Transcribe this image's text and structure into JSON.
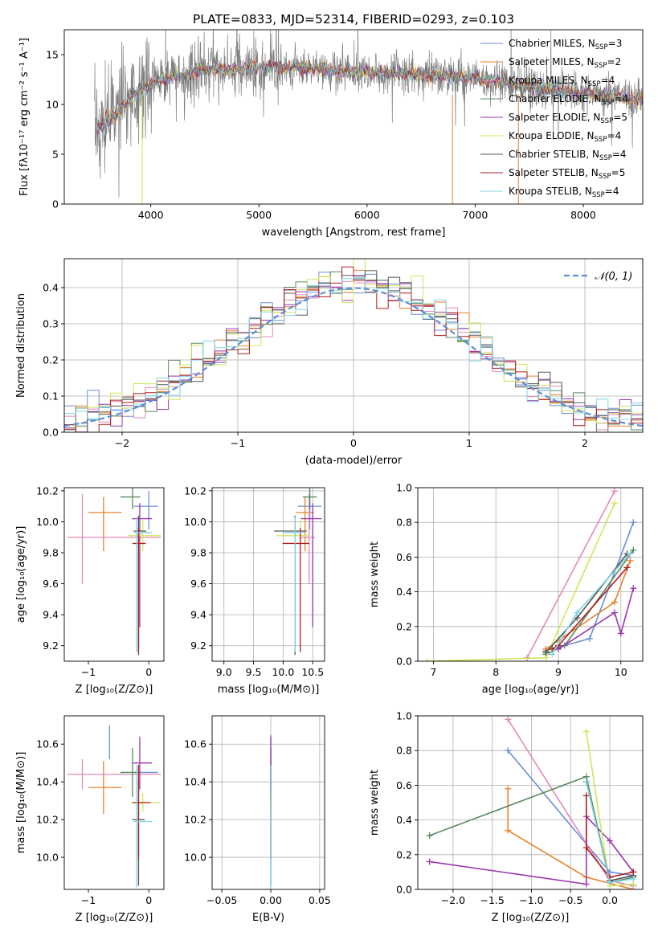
{
  "figure": {
    "title": "PLATE=0833, MJD=52314, FIBERID=0293, z=0.103"
  },
  "series_styles": [
    {
      "name": "Chabrier MILES",
      "nssp": "3",
      "color": "#6a8fd8"
    },
    {
      "name": "Salpeter MILES",
      "nssp": "2",
      "color": "#e8822a"
    },
    {
      "name": "Kroupa MILES",
      "nssp": "4",
      "color": "#e28ab8"
    },
    {
      "name": "Chabrier ELODIE",
      "nssp": "4",
      "color": "#5a8a60"
    },
    {
      "name": "Salpeter ELODIE",
      "nssp": "5",
      "color": "#9a35b0"
    },
    {
      "name": "Kroupa ELODIE",
      "nssp": "4",
      "color": "#cce85a"
    },
    {
      "name": "Chabrier STELIB",
      "nssp": "4",
      "color": "#555555"
    },
    {
      "name": "Salpeter STELIB",
      "nssp": "5",
      "color": "#b01d1d"
    },
    {
      "name": "Kroupa STELIB",
      "nssp": "4",
      "color": "#7fd6e4"
    }
  ],
  "chart_data": [
    {
      "id": "spectrum",
      "type": "line",
      "title": "PLATE=0833, MJD=52314, FIBERID=0293, z=0.103",
      "xlabel": "wavelength [Angstrom, rest frame]",
      "ylabel": "Flux [fλ10⁻¹⁷ erg cm⁻² s⁻¹ A⁻¹]",
      "xlim": [
        3200,
        8550
      ],
      "ylim": [
        0,
        17.5
      ],
      "xticks": [
        4000,
        5000,
        6000,
        7000,
        8000
      ],
      "yticks": [
        0,
        5,
        10,
        15
      ],
      "grid": false,
      "legend": "top-right",
      "data_color": "#7f7f7f",
      "continuum": {
        "x": [
          3480,
          3550,
          3650,
          3750,
          3850,
          3950,
          4050,
          4150,
          4300,
          4500,
          4700,
          4900,
          5100,
          5300,
          5500,
          5700,
          5900,
          6100,
          6300,
          6500,
          6700,
          6900,
          7100,
          7300,
          7500,
          7700,
          7900,
          8100,
          8300,
          8550
        ],
        "y": [
          7.5,
          7.8,
          8.8,
          10.0,
          11.0,
          11.8,
          12.3,
          12.6,
          13.0,
          13.4,
          13.5,
          13.6,
          13.8,
          13.7,
          13.6,
          13.4,
          13.3,
          13.3,
          13.1,
          13.0,
          12.9,
          12.8,
          12.5,
          12.2,
          11.8,
          11.5,
          11.2,
          11.1,
          10.8,
          10.5
        ]
      }
    },
    {
      "id": "residuals",
      "type": "histogram",
      "xlabel": "(data-model)/error",
      "ylabel": "Normed distribution",
      "xlim": [
        -2.5,
        2.5
      ],
      "ylim": [
        0,
        0.48
      ],
      "xticks": [
        -2,
        -1,
        0,
        1,
        2
      ],
      "yticks": [
        0.0,
        0.1,
        0.2,
        0.3,
        0.4
      ],
      "grid": true,
      "legend": "top-right",
      "reference_curve": {
        "label": "𝒩(0, 1)",
        "mean": 0,
        "sigma": 1,
        "color": "#5a8fd8"
      },
      "bin_width": 0.1
    },
    {
      "id": "age-vs-Z",
      "type": "errorbar",
      "xlabel": "Z [log₁₀(Z/Z⊙)]",
      "ylabel": "age  [log₁₀(age/yr)]",
      "xlim": [
        -1.4,
        0.25
      ],
      "ylim": [
        9.1,
        10.22
      ],
      "xticks": [
        -1,
        0
      ],
      "yticks": [
        9.2,
        9.4,
        9.6,
        9.8,
        10.0,
        10.2
      ],
      "grid": false,
      "points": [
        {
          "series": 0,
          "x": 0.0,
          "xerr": [
            0.25,
            0.15
          ],
          "y": 10.1,
          "yerr": [
            0.15,
            0.1
          ]
        },
        {
          "series": 1,
          "x": -0.75,
          "xerr": [
            0.25,
            0.3
          ],
          "y": 10.06,
          "yerr": [
            0.25,
            0.1
          ]
        },
        {
          "series": 2,
          "x": -1.1,
          "xerr": [
            0.25,
            1.3
          ],
          "y": 9.9,
          "yerr": [
            0.3,
            0.28
          ]
        },
        {
          "series": 3,
          "x": -0.27,
          "xerr": [
            0.2,
            0.13
          ],
          "y": 10.16,
          "yerr": [
            0.08,
            0.06
          ]
        },
        {
          "series": 4,
          "x": -0.15,
          "xerr": [
            0.13,
            0.2
          ],
          "y": 10.02,
          "yerr": [
            0.7,
            0.1
          ]
        },
        {
          "series": 5,
          "x": -0.1,
          "xerr": [
            0.25,
            0.3
          ],
          "y": 9.91,
          "yerr": [
            0.1,
            0.1
          ]
        },
        {
          "series": 6,
          "x": -0.17,
          "xerr": [
            0.08,
            0.13
          ],
          "y": 9.94,
          "yerr": [
            0.8,
            0.1
          ]
        },
        {
          "series": 7,
          "x": -0.17,
          "xerr": [
            0.1,
            0.12
          ],
          "y": 9.86,
          "yerr": [
            0.7,
            0.1
          ]
        },
        {
          "series": 8,
          "x": -0.2,
          "xerr": [
            0.05,
            0.25
          ],
          "y": 9.93,
          "yerr": [
            0.77,
            0.1
          ]
        }
      ]
    },
    {
      "id": "age-vs-mass",
      "type": "errorbar",
      "xlabel": "mass [log₁₀(M/M⊙)]",
      "ylabel": "",
      "xlim": [
        8.8,
        10.7
      ],
      "ylim": [
        9.1,
        10.22
      ],
      "xticks": [
        9.0,
        9.5,
        10.0,
        10.5
      ],
      "yticks": [
        9.2,
        9.4,
        9.6,
        9.8,
        10.0,
        10.2
      ],
      "grid": true,
      "points": [
        {
          "series": 0,
          "x": 10.45,
          "xerr": [
            0.2,
            0.2
          ],
          "y": 10.1,
          "yerr": [
            0.15,
            0.1
          ]
        },
        {
          "series": 1,
          "x": 10.37,
          "xerr": [
            0.15,
            0.15
          ],
          "y": 10.06,
          "yerr": [
            0.25,
            0.1
          ]
        },
        {
          "series": 2,
          "x": 10.44,
          "xerr": [
            0.15,
            0.1
          ],
          "y": 9.9,
          "yerr": [
            0.3,
            0.28
          ]
        },
        {
          "series": 3,
          "x": 10.45,
          "xerr": [
            0.12,
            0.12
          ],
          "y": 10.16,
          "yerr": [
            0.08,
            0.06
          ]
        },
        {
          "series": 4,
          "x": 10.5,
          "xerr": [
            0.2,
            0.15
          ],
          "y": 10.02,
          "yerr": [
            0.7,
            0.1
          ]
        },
        {
          "series": 5,
          "x": 10.29,
          "xerr": [
            0.4,
            0.15
          ],
          "y": 9.91,
          "yerr": [
            0.1,
            0.1
          ]
        },
        {
          "series": 6,
          "x": 10.2,
          "xerr": [
            0.35,
            0.2
          ],
          "y": 9.94,
          "yerr": [
            0.8,
            0.1
          ]
        },
        {
          "series": 7,
          "x": 10.29,
          "xerr": [
            0.3,
            0.15
          ],
          "y": 9.86,
          "yerr": [
            0.7,
            0.1
          ]
        },
        {
          "series": 8,
          "x": 10.2,
          "xerr": [
            0.2,
            0.15
          ],
          "y": 9.93,
          "yerr": [
            0.77,
            0.1
          ]
        }
      ]
    },
    {
      "id": "massweight-vs-age",
      "type": "line",
      "xlabel": "age  [log₁₀(age/yr)]",
      "ylabel": "mass weight",
      "xlim": [
        6.75,
        10.35
      ],
      "ylim": [
        0,
        1.0
      ],
      "xticks": [
        7,
        8,
        9,
        10
      ],
      "yticks": [
        0.0,
        0.2,
        0.4,
        0.6,
        0.8,
        1.0
      ],
      "grid": true,
      "series": [
        {
          "style": 0,
          "x": [
            8.8,
            9.5,
            10.2
          ],
          "y": [
            0.06,
            0.13,
            0.8
          ]
        },
        {
          "style": 1,
          "x": [
            8.8,
            9.9,
            10.15
          ],
          "y": [
            0.07,
            0.34,
            0.58
          ]
        },
        {
          "style": 2,
          "x": [
            8.5,
            9.9
          ],
          "y": [
            0.02,
            0.98
          ]
        },
        {
          "style": 3,
          "x": [
            8.8,
            9.1,
            10.2
          ],
          "y": [
            0.04,
            0.09,
            0.64
          ]
        },
        {
          "style": 4,
          "x": [
            9.0,
            9.9,
            10.0,
            10.2
          ],
          "y": [
            0.07,
            0.28,
            0.16,
            0.42
          ]
        },
        {
          "style": 5,
          "x": [
            6.9,
            8.8,
            9.9
          ],
          "y": [
            0.0,
            0.02,
            0.91
          ]
        },
        {
          "style": 6,
          "x": [
            8.8,
            9.3,
            10.1
          ],
          "y": [
            0.05,
            0.25,
            0.62
          ]
        },
        {
          "style": 7,
          "x": [
            8.9,
            9.0,
            10.1
          ],
          "y": [
            0.07,
            0.09,
            0.54
          ]
        },
        {
          "style": 8,
          "x": [
            8.9,
            9.3,
            10.15
          ],
          "y": [
            0.04,
            0.28,
            0.62
          ]
        }
      ]
    },
    {
      "id": "mass-vs-Z",
      "type": "errorbar",
      "xlabel": "Z [log₁₀(Z/Z⊙)]",
      "ylabel": "mass [log₁₀(M/M⊙)]",
      "xlim": [
        -1.4,
        0.25
      ],
      "ylim": [
        9.83,
        10.75
      ],
      "xticks": [
        -1,
        0
      ],
      "yticks": [
        10.0,
        10.2,
        10.4,
        10.6
      ],
      "grid": false,
      "points": [
        {
          "series": 0,
          "x": -0.65,
          "xerr": [
            0.0,
            0.0
          ],
          "y": 10.52,
          "yerr": [
            0.0,
            0.18
          ]
        },
        {
          "series": 0,
          "x": 0.0,
          "xerr": [
            0.25,
            0.15
          ],
          "y": 10.45,
          "yerr": [
            0.0,
            0.0
          ]
        },
        {
          "series": 1,
          "x": -0.75,
          "xerr": [
            0.25,
            0.3
          ],
          "y": 10.37,
          "yerr": [
            0.14,
            0.14
          ]
        },
        {
          "series": 2,
          "x": -1.1,
          "xerr": [
            0.25,
            1.3
          ],
          "y": 10.44,
          "yerr": [
            0.08,
            0.08
          ]
        },
        {
          "series": 3,
          "x": -0.27,
          "xerr": [
            0.2,
            0.13
          ],
          "y": 10.45,
          "yerr": [
            0.13,
            0.13
          ]
        },
        {
          "series": 4,
          "x": -0.15,
          "xerr": [
            0.13,
            0.2
          ],
          "y": 10.5,
          "yerr": [
            0.14,
            0.14
          ]
        },
        {
          "series": 5,
          "x": -0.1,
          "xerr": [
            0.2,
            0.3
          ],
          "y": 10.29,
          "yerr": [
            0.05,
            0.05
          ]
        },
        {
          "series": 6,
          "x": -0.17,
          "xerr": [
            0.1,
            0.1
          ],
          "y": 10.2,
          "yerr": [
            0.35,
            0.2
          ]
        },
        {
          "series": 7,
          "x": -0.17,
          "xerr": [
            0.1,
            0.2
          ],
          "y": 10.29,
          "yerr": [
            0.3,
            0.2
          ]
        },
        {
          "series": 8,
          "x": -0.2,
          "xerr": [
            0.05,
            0.25
          ],
          "y": 10.19,
          "yerr": [
            0.35,
            0.3
          ]
        }
      ]
    },
    {
      "id": "mass-vs-EBV",
      "type": "errorbar",
      "xlabel": "E(B-V)",
      "ylabel": "",
      "xlim": [
        -0.06,
        0.055
      ],
      "ylim": [
        9.83,
        10.75
      ],
      "xticks": [
        -0.05,
        0.0,
        0.05
      ],
      "yticks": [
        10.0,
        10.2,
        10.4,
        10.6
      ],
      "grid": true,
      "points": [
        {
          "series": 0,
          "x": 0.0,
          "xerr": [
            0.0,
            0.0
          ],
          "y": 10.45,
          "yerr": [
            0.15,
            0.2
          ]
        },
        {
          "series": 1,
          "x": 0.0,
          "xerr": [
            0.0,
            0.0
          ],
          "y": 10.37,
          "yerr": [
            0.14,
            0.14
          ]
        },
        {
          "series": 2,
          "x": 0.0,
          "xerr": [
            0.0,
            0.0
          ],
          "y": 10.44,
          "yerr": [
            0.08,
            0.08
          ]
        },
        {
          "series": 3,
          "x": 0.0,
          "xerr": [
            0.0,
            0.0
          ],
          "y": 10.45,
          "yerr": [
            0.13,
            0.13
          ]
        },
        {
          "series": 4,
          "x": 0.0,
          "xerr": [
            0.0,
            0.0
          ],
          "y": 10.5,
          "yerr": [
            0.14,
            0.14
          ]
        },
        {
          "series": 5,
          "x": 0.0,
          "xerr": [
            0.0,
            0.0
          ],
          "y": 10.29,
          "yerr": [
            0.05,
            0.05
          ]
        },
        {
          "series": 6,
          "x": 0.0,
          "xerr": [
            0.0,
            0.0
          ],
          "y": 10.2,
          "yerr": [
            0.35,
            0.2
          ]
        },
        {
          "series": 7,
          "x": 0.0,
          "xerr": [
            0.0,
            0.0
          ],
          "y": 10.29,
          "yerr": [
            0.3,
            0.2
          ]
        },
        {
          "series": 8,
          "x": 0.0,
          "xerr": [
            0.0,
            0.0
          ],
          "y": 10.19,
          "yerr": [
            0.35,
            0.3
          ]
        }
      ]
    },
    {
      "id": "massweight-vs-Z",
      "type": "line",
      "xlabel": "Z [log₁₀(Z/Z⊙)]",
      "ylabel": "mass weight",
      "xlim": [
        -2.45,
        0.42
      ],
      "ylim": [
        0,
        1.0
      ],
      "xticks": [
        -2.0,
        -1.5,
        -1.0,
        -0.5,
        0.0
      ],
      "yticks": [
        0.0,
        0.2,
        0.4,
        0.6,
        0.8,
        1.0
      ],
      "grid": true,
      "series": [
        {
          "style": 0,
          "x": [
            -1.3,
            0.0,
            0.3
          ],
          "y": [
            0.8,
            0.1,
            0.08
          ]
        },
        {
          "style": 1,
          "x": [
            -1.3,
            -1.3,
            -0.3,
            0.3
          ],
          "y": [
            0.58,
            0.34,
            0.07,
            0.0
          ]
        },
        {
          "style": 2,
          "x": [
            -1.3,
            0.0,
            0.3
          ],
          "y": [
            0.98,
            0.05,
            0.02
          ]
        },
        {
          "style": 3,
          "x": [
            -2.3,
            -0.3,
            0.0,
            0.3
          ],
          "y": [
            0.31,
            0.65,
            0.04,
            0.07
          ]
        },
        {
          "style": 4,
          "x": [
            -2.3,
            -0.3,
            -0.3,
            0.0,
            0.3
          ],
          "y": [
            0.16,
            0.03,
            0.42,
            0.28,
            0.1
          ]
        },
        {
          "style": 5,
          "x": [
            -0.3,
            0.0,
            0.3
          ],
          "y": [
            0.91,
            0.02,
            0.03
          ]
        },
        {
          "style": 6,
          "x": [
            -0.3,
            0.0,
            0.3
          ],
          "y": [
            0.62,
            0.05,
            0.08
          ]
        },
        {
          "style": 7,
          "x": [
            -0.3,
            -0.3,
            0.0,
            0.3
          ],
          "y": [
            0.54,
            0.24,
            0.07,
            0.1
          ]
        },
        {
          "style": 8,
          "x": [
            -0.3,
            0.0,
            0.3
          ],
          "y": [
            0.62,
            0.04,
            0.06
          ]
        }
      ]
    }
  ]
}
